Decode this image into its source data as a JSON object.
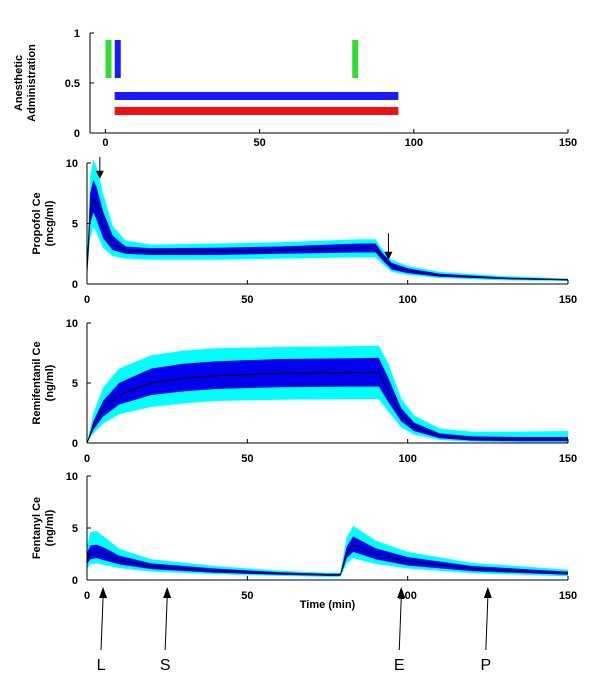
{
  "chart_data": [
    {
      "type": "bar",
      "name": "anesthetic-administration",
      "ylabel": [
        "Anesthetic",
        "Administration"
      ],
      "xlim": [
        -5,
        150
      ],
      "ylim": [
        0,
        1
      ],
      "yticks": [
        "0",
        "0.5",
        "1"
      ],
      "xticks": [
        "0",
        "50",
        "100",
        "150"
      ],
      "bolus_markers": [
        {
          "x": 1,
          "y0": 0.55,
          "y1": 0.93,
          "color": "#33dd33"
        },
        {
          "x": 4,
          "y0": 0.55,
          "y1": 0.93,
          "color": "#1a1aff"
        },
        {
          "x": 81,
          "y0": 0.55,
          "y1": 0.93,
          "color": "#33dd33"
        }
      ],
      "infusions": [
        {
          "start": 3,
          "end": 95,
          "y": 0.37,
          "color": "#1a1aff"
        },
        {
          "start": 3,
          "end": 95,
          "y": 0.22,
          "color": "#ee1111"
        }
      ]
    },
    {
      "type": "area",
      "name": "propofol",
      "ylabel": [
        "Propofol Ce",
        "(mcg/ml)"
      ],
      "xlim": [
        0,
        150
      ],
      "ylim": [
        0,
        10
      ],
      "yticks": [
        "0",
        "5",
        "10"
      ],
      "xticks": [
        "0",
        "50",
        "100",
        "150"
      ],
      "x": [
        0,
        1,
        2,
        3,
        5,
        8,
        12,
        20,
        40,
        60,
        85,
        90,
        92,
        95,
        100,
        110,
        130,
        150
      ],
      "median": [
        1.0,
        6.0,
        7.0,
        6.5,
        4.8,
        3.3,
        2.8,
        2.7,
        2.7,
        2.8,
        3.0,
        3.0,
        2.3,
        1.5,
        1.1,
        0.7,
        0.45,
        0.35
      ],
      "inner_low": [
        0.8,
        5.0,
        5.9,
        5.3,
        3.8,
        2.8,
        2.5,
        2.4,
        2.4,
        2.5,
        2.6,
        2.6,
        2.0,
        1.2,
        0.9,
        0.6,
        0.4,
        0.3
      ],
      "inner_high": [
        1.3,
        7.5,
        8.6,
        8.0,
        6.0,
        4.0,
        3.1,
        2.95,
        3.0,
        3.1,
        3.35,
        3.35,
        2.6,
        1.75,
        1.3,
        0.85,
        0.55,
        0.4
      ],
      "outer_low": [
        0.6,
        3.8,
        4.7,
        4.2,
        3.0,
        2.3,
        2.1,
        2.0,
        2.0,
        2.1,
        2.2,
        2.2,
        1.7,
        1.0,
        0.75,
        0.5,
        0.3,
        0.25
      ],
      "outer_high": [
        1.6,
        9.0,
        10.3,
        9.7,
        7.5,
        4.8,
        3.6,
        3.25,
        3.35,
        3.45,
        3.7,
        3.7,
        2.9,
        2.0,
        1.5,
        1.0,
        0.65,
        0.45
      ],
      "arrows": [
        {
          "x": 4,
          "y_top": 10.5,
          "y_tip": 8.7
        },
        {
          "x": 94,
          "y_top": 4.2,
          "y_tip": 2.0
        }
      ]
    },
    {
      "type": "area",
      "name": "remifentanil",
      "ylabel": [
        "Remifentanil Ce",
        "(ng/ml)"
      ],
      "xlim": [
        0,
        150
      ],
      "ylim": [
        0,
        10
      ],
      "yticks": [
        "0",
        "5",
        "10"
      ],
      "xticks": [
        "0",
        "50",
        "100",
        "150"
      ],
      "x": [
        0,
        2,
        5,
        10,
        20,
        30,
        40,
        60,
        80,
        91,
        94,
        98,
        102,
        110,
        120,
        135,
        150
      ],
      "median": [
        0,
        1.4,
        2.8,
        4.0,
        5.0,
        5.4,
        5.6,
        5.8,
        5.85,
        5.9,
        4.3,
        2.3,
        1.3,
        0.6,
        0.35,
        0.3,
        0.3
      ],
      "inner_low": [
        0,
        1.1,
        2.2,
        3.2,
        4.0,
        4.3,
        4.5,
        4.65,
        4.7,
        4.7,
        3.4,
        1.8,
        1.0,
        0.4,
        0.2,
        0.15,
        0.15
      ],
      "inner_high": [
        0,
        1.8,
        3.5,
        5.0,
        6.2,
        6.6,
        6.8,
        7.0,
        7.05,
        7.1,
        5.4,
        2.9,
        1.7,
        0.8,
        0.55,
        0.5,
        0.5
      ],
      "outer_low": [
        0,
        0.8,
        1.6,
        2.4,
        3.0,
        3.3,
        3.5,
        3.6,
        3.65,
        3.65,
        2.6,
        1.3,
        0.7,
        0.25,
        0.1,
        0.05,
        0.05
      ],
      "outer_high": [
        0,
        2.5,
        4.6,
        6.2,
        7.3,
        7.7,
        7.9,
        8.0,
        8.05,
        8.1,
        6.6,
        3.7,
        2.3,
        1.2,
        0.95,
        0.95,
        1.0
      ]
    },
    {
      "type": "area",
      "name": "fentanyl",
      "ylabel": [
        "Fentanyl Ce",
        "(ng/ml)"
      ],
      "xlabel": "Time (min)",
      "xlim": [
        0,
        150
      ],
      "ylim": [
        0,
        10
      ],
      "yticks": [
        "0",
        "5",
        "10"
      ],
      "xticks": [
        "0",
        "50",
        "100",
        "150"
      ],
      "x": [
        0,
        1,
        3,
        6,
        10,
        20,
        40,
        60,
        75,
        79,
        80,
        81,
        83,
        86,
        90,
        100,
        120,
        150
      ],
      "median": [
        2.0,
        2.6,
        2.7,
        2.4,
        1.9,
        1.3,
        0.9,
        0.6,
        0.5,
        0.5,
        1.5,
        2.6,
        3.4,
        3.0,
        2.5,
        1.8,
        1.1,
        0.65
      ],
      "inner_low": [
        1.5,
        2.0,
        2.1,
        1.85,
        1.5,
        1.05,
        0.7,
        0.5,
        0.4,
        0.4,
        1.2,
        2.1,
        2.7,
        2.4,
        2.0,
        1.4,
        0.85,
        0.5
      ],
      "inner_high": [
        2.6,
        3.3,
        3.4,
        3.0,
        2.35,
        1.6,
        1.1,
        0.75,
        0.6,
        0.6,
        1.9,
        3.2,
        4.2,
        3.7,
        3.05,
        2.2,
        1.35,
        0.8
      ],
      "outer_low": [
        1.1,
        1.5,
        1.6,
        1.4,
        1.15,
        0.8,
        0.55,
        0.4,
        0.3,
        0.3,
        0.9,
        1.6,
        2.1,
        1.85,
        1.55,
        1.1,
        0.65,
        0.35
      ],
      "outer_high": [
        3.2,
        4.6,
        4.7,
        4.0,
        3.0,
        2.0,
        1.35,
        0.9,
        0.7,
        0.7,
        2.4,
        4.1,
        5.2,
        4.6,
        3.8,
        2.7,
        1.65,
        1.0
      ]
    }
  ],
  "events": [
    {
      "label": "L",
      "x": 5
    },
    {
      "label": "S",
      "x": 25
    },
    {
      "label": "E",
      "x": 98
    },
    {
      "label": "P",
      "x": 125
    }
  ],
  "colors": {
    "outer_band": "#00ffff",
    "inner_band": "#0000ee",
    "median": "#000000"
  }
}
